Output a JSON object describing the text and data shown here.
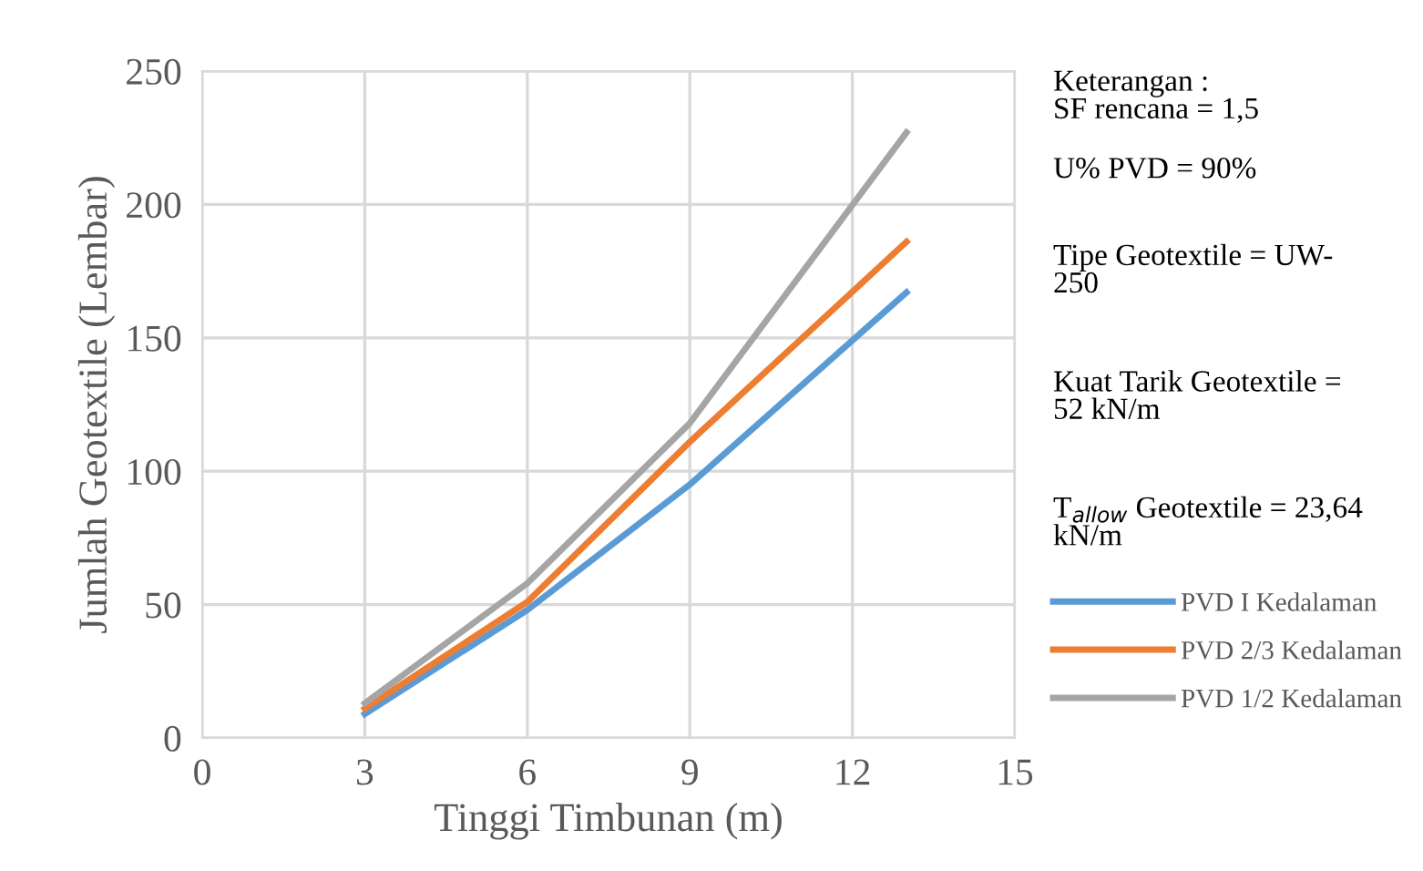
{
  "chart_data": {
    "type": "line",
    "xlabel": "Tinggi Timbunan (m)",
    "ylabel": "Jumlah Geotextile (Lembar)",
    "x": [
      3,
      6,
      9,
      13
    ],
    "series": [
      {
        "name": "PVD I Kedalaman",
        "color": "#5b9bd5",
        "values": [
          9,
          48,
          95,
          167
        ]
      },
      {
        "name": "PVD 2/3 Kedalaman",
        "color": "#ed7d31",
        "values": [
          11,
          51,
          111,
          186
        ]
      },
      {
        "name": "PVD 1/2 Kedalaman",
        "color": "#a5a5a5",
        "values": [
          13,
          58,
          118,
          227
        ]
      }
    ],
    "xlim": [
      0,
      15
    ],
    "xticks": [
      0,
      3,
      6,
      9,
      12,
      15
    ],
    "ylim": [
      0,
      250
    ],
    "yticks": [
      0,
      50,
      100,
      150,
      200,
      250
    ],
    "grid": true,
    "legend": "right",
    "marker": "none",
    "line_style": "solid",
    "annotations": [
      "Keterangan :\nSF rencana = 1,5",
      "U% PVD = 90%",
      "Tipe Geotextile = UW-\n250",
      "Kuat Tarik Geotextile =\n52 kN/m",
      "T$_{allow}$ Geotextile = 23,64\nkN/m"
    ]
  }
}
